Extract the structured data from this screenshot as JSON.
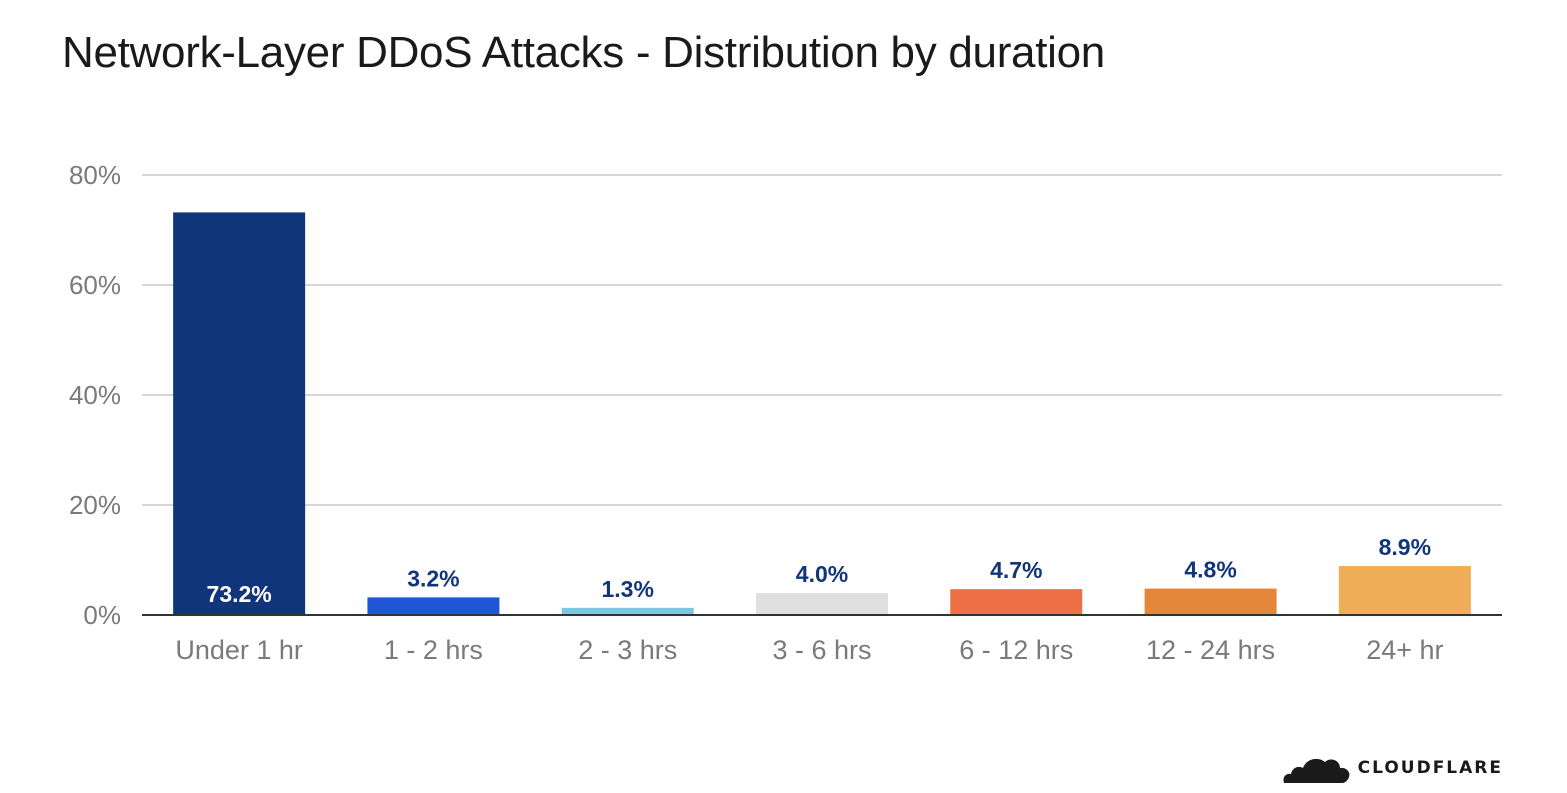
{
  "chart_data": {
    "type": "bar",
    "title": "Network-Layer DDoS Attacks - Distribution by duration",
    "categories": [
      "Under 1 hr",
      "1 - 2 hrs",
      "2 - 3 hrs",
      "3 - 6 hrs",
      "6 - 12 hrs",
      "12 - 24 hrs",
      "24+ hr"
    ],
    "values": [
      73.2,
      3.2,
      1.3,
      4.0,
      4.7,
      4.8,
      8.9
    ],
    "value_labels": [
      "73.2%",
      "3.2%",
      "1.3%",
      "4.0%",
      "4.7%",
      "4.8%",
      "8.9%"
    ],
    "colors": [
      "#11357b",
      "#1e56d6",
      "#7ec6de",
      "#e0e0e0",
      "#ec6f45",
      "#e48738",
      "#f0ad57"
    ],
    "ylim": [
      0,
      80
    ],
    "yticks": [
      0,
      20,
      40,
      60,
      80
    ],
    "ytick_labels": [
      "0%",
      "20%",
      "40%",
      "60%",
      "80%"
    ],
    "xlabel": "",
    "ylabel": "",
    "grid": true,
    "legend": "none"
  },
  "brand": {
    "logo_text": "CLOUDFLARE",
    "logo_icon": "cloud-icon",
    "text_color": "#1a1a1a"
  }
}
